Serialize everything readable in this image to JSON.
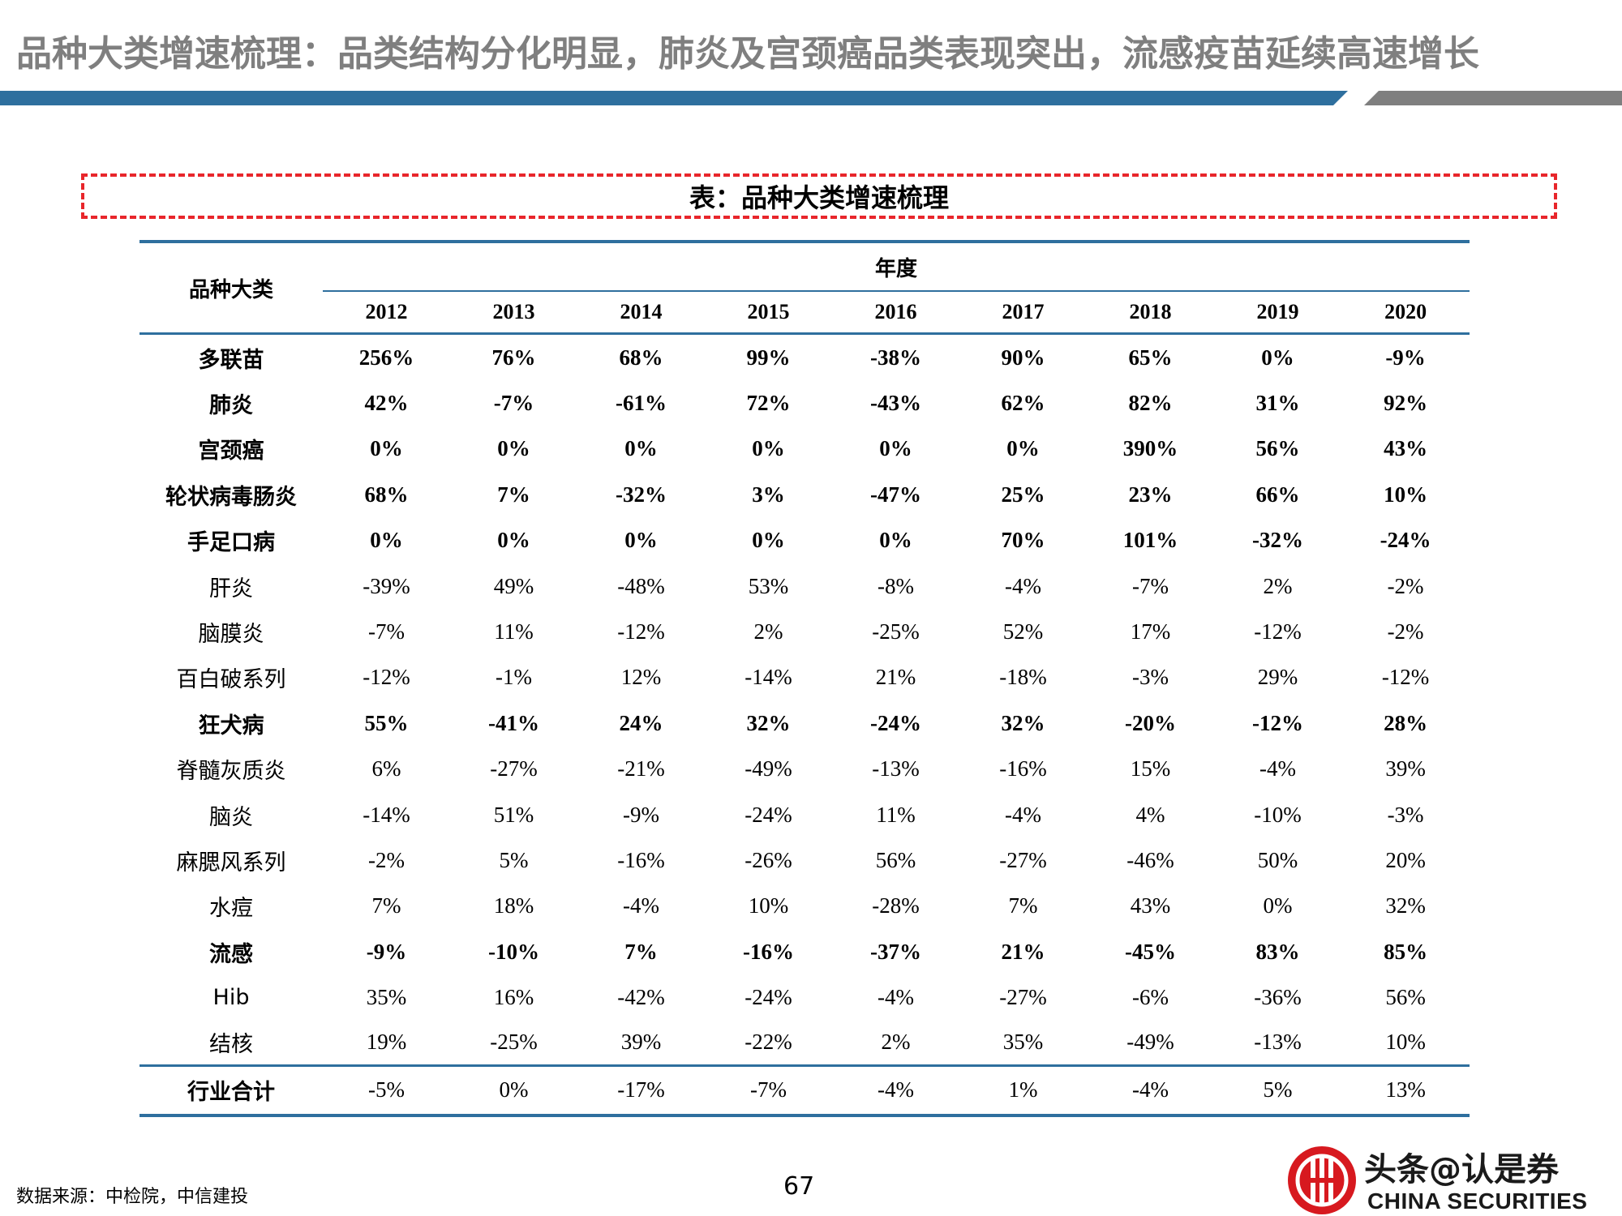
{
  "title": "品种大类增速梳理：品类结构分化明显，肺炎及宫颈癌品类表现突出，流感疫苗延续高速增长",
  "caption": "表：品种大类增速梳理",
  "table": {
    "category_header": "品种大类",
    "year_group_header": "年度",
    "years": [
      "2012",
      "2013",
      "2014",
      "2015",
      "2016",
      "2017",
      "2018",
      "2019",
      "2020"
    ],
    "rows": [
      {
        "name": "多联苗",
        "bold": true,
        "values": [
          "256%",
          "76%",
          "68%",
          "99%",
          "-38%",
          "90%",
          "65%",
          "0%",
          "-9%"
        ]
      },
      {
        "name": "肺炎",
        "bold": true,
        "values": [
          "42%",
          "-7%",
          "-61%",
          "72%",
          "-43%",
          "62%",
          "82%",
          "31%",
          "92%"
        ]
      },
      {
        "name": "宫颈癌",
        "bold": true,
        "values": [
          "0%",
          "0%",
          "0%",
          "0%",
          "0%",
          "0%",
          "390%",
          "56%",
          "43%"
        ]
      },
      {
        "name": "轮状病毒肠炎",
        "bold": true,
        "values": [
          "68%",
          "7%",
          "-32%",
          "3%",
          "-47%",
          "25%",
          "23%",
          "66%",
          "10%"
        ]
      },
      {
        "name": "手足口病",
        "bold": true,
        "values": [
          "0%",
          "0%",
          "0%",
          "0%",
          "0%",
          "70%",
          "101%",
          "-32%",
          "-24%"
        ]
      },
      {
        "name": "肝炎",
        "bold": false,
        "values": [
          "-39%",
          "49%",
          "-48%",
          "53%",
          "-8%",
          "-4%",
          "-7%",
          "2%",
          "-2%"
        ]
      },
      {
        "name": "脑膜炎",
        "bold": false,
        "values": [
          "-7%",
          "11%",
          "-12%",
          "2%",
          "-25%",
          "52%",
          "17%",
          "-12%",
          "-2%"
        ]
      },
      {
        "name": "百白破系列",
        "bold": false,
        "values": [
          "-12%",
          "-1%",
          "12%",
          "-14%",
          "21%",
          "-18%",
          "-3%",
          "29%",
          "-12%"
        ]
      },
      {
        "name": "狂犬病",
        "bold": true,
        "values": [
          "55%",
          "-41%",
          "24%",
          "32%",
          "-24%",
          "32%",
          "-20%",
          "-12%",
          "28%"
        ]
      },
      {
        "name": "脊髓灰质炎",
        "bold": false,
        "values": [
          "6%",
          "-27%",
          "-21%",
          "-49%",
          "-13%",
          "-16%",
          "15%",
          "-4%",
          "39%"
        ]
      },
      {
        "name": "脑炎",
        "bold": false,
        "values": [
          "-14%",
          "51%",
          "-9%",
          "-24%",
          "11%",
          "-4%",
          "4%",
          "-10%",
          "-3%"
        ]
      },
      {
        "name": "麻腮风系列",
        "bold": false,
        "values": [
          "-2%",
          "5%",
          "-16%",
          "-26%",
          "56%",
          "-27%",
          "-46%",
          "50%",
          "20%"
        ]
      },
      {
        "name": "水痘",
        "bold": false,
        "values": [
          "7%",
          "18%",
          "-4%",
          "10%",
          "-28%",
          "7%",
          "43%",
          "0%",
          "32%"
        ]
      },
      {
        "name": "流感",
        "bold": true,
        "values": [
          "-9%",
          "-10%",
          "7%",
          "-16%",
          "-37%",
          "21%",
          "-45%",
          "83%",
          "85%"
        ]
      },
      {
        "name": "Hib",
        "bold": false,
        "values": [
          "35%",
          "16%",
          "-42%",
          "-24%",
          "-4%",
          "-27%",
          "-6%",
          "-36%",
          "56%"
        ]
      },
      {
        "name": "结核",
        "bold": false,
        "values": [
          "19%",
          "-25%",
          "39%",
          "-22%",
          "2%",
          "35%",
          "-49%",
          "-13%",
          "10%"
        ]
      }
    ],
    "total": {
      "name": "行业合计",
      "values": [
        "-5%",
        "0%",
        "-17%",
        "-7%",
        "-4%",
        "1%",
        "-4%",
        "5%",
        "13%"
      ]
    }
  },
  "footer": {
    "source": "数据来源：中检院，中信建投",
    "page_number": "67"
  },
  "logo": {
    "text_cn": "头条@认是券",
    "text_en": "CHINA SECURITIES",
    "color": "#d7191f"
  },
  "colors": {
    "accent_blue": "#2e6f9e",
    "accent_gray": "#7f7f7f",
    "dash_red": "#e8262b"
  }
}
